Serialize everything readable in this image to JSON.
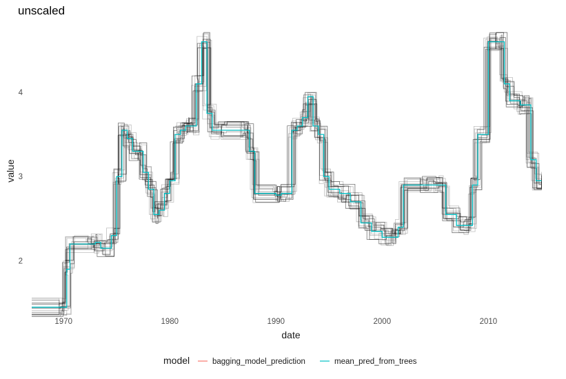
{
  "chart_data": {
    "type": "line",
    "title": "unscaled",
    "xlabel": "date",
    "ylabel": "value",
    "xlim": [
      1967,
      2015.3
    ],
    "ylim": [
      1.35,
      4.85
    ],
    "x_ticks": [
      1970,
      1980,
      1990,
      2000,
      2010
    ],
    "y_ticks": [
      2,
      3,
      4
    ],
    "grid": false,
    "legend": {
      "title": "model",
      "position": "bottom",
      "entries": [
        {
          "name": "bagging_model_prediction",
          "color": "#F8766D"
        },
        {
          "name": "mean_pred_from_trees",
          "color": "#00BFC4"
        }
      ]
    },
    "series": [
      {
        "name": "mean_pred_from_trees",
        "color": "#00BFC4",
        "x": [
          1967.0,
          1970.0,
          1970.3,
          1970.6,
          1972.5,
          1973.0,
          1973.5,
          1974.5,
          1975.0,
          1975.5,
          1976.0,
          1976.5,
          1977.0,
          1977.5,
          1978.0,
          1978.5,
          1979.0,
          1979.5,
          1980.0,
          1980.5,
          1981.0,
          1981.5,
          1982.0,
          1982.5,
          1983.0,
          1983.5,
          1984.0,
          1985.0,
          1987.0,
          1987.5,
          1988.0,
          1990.0,
          1990.5,
          1991.5,
          1992.0,
          1992.5,
          1993.0,
          1993.5,
          1994.0,
          1994.5,
          1995.0,
          1996.0,
          1997.0,
          1998.0,
          1999.0,
          2000.0,
          2001.0,
          2001.5,
          2002.0,
          2004.0,
          2005.0,
          2006.0,
          2007.0,
          2008.0,
          2008.5,
          2009.0,
          2010.0,
          2011.0,
          2011.5,
          2012.0,
          2013.0,
          2013.5,
          2014.0,
          2014.5,
          2015.0
        ],
        "y": [
          1.45,
          1.45,
          1.9,
          2.2,
          2.2,
          2.22,
          2.15,
          2.3,
          3.0,
          3.55,
          3.45,
          3.3,
          3.3,
          3.05,
          2.85,
          2.55,
          2.6,
          2.8,
          2.95,
          3.5,
          3.55,
          3.6,
          3.6,
          4.1,
          4.6,
          3.75,
          3.55,
          3.55,
          3.55,
          3.3,
          2.8,
          2.78,
          2.8,
          3.55,
          3.6,
          3.7,
          3.95,
          3.6,
          3.5,
          3.0,
          2.85,
          2.8,
          2.7,
          2.45,
          2.35,
          2.28,
          2.28,
          2.4,
          2.9,
          2.9,
          2.9,
          2.55,
          2.42,
          2.42,
          2.9,
          3.5,
          4.6,
          4.6,
          4.1,
          3.9,
          3.85,
          3.85,
          3.2,
          2.95,
          2.95
        ]
      }
    ]
  }
}
